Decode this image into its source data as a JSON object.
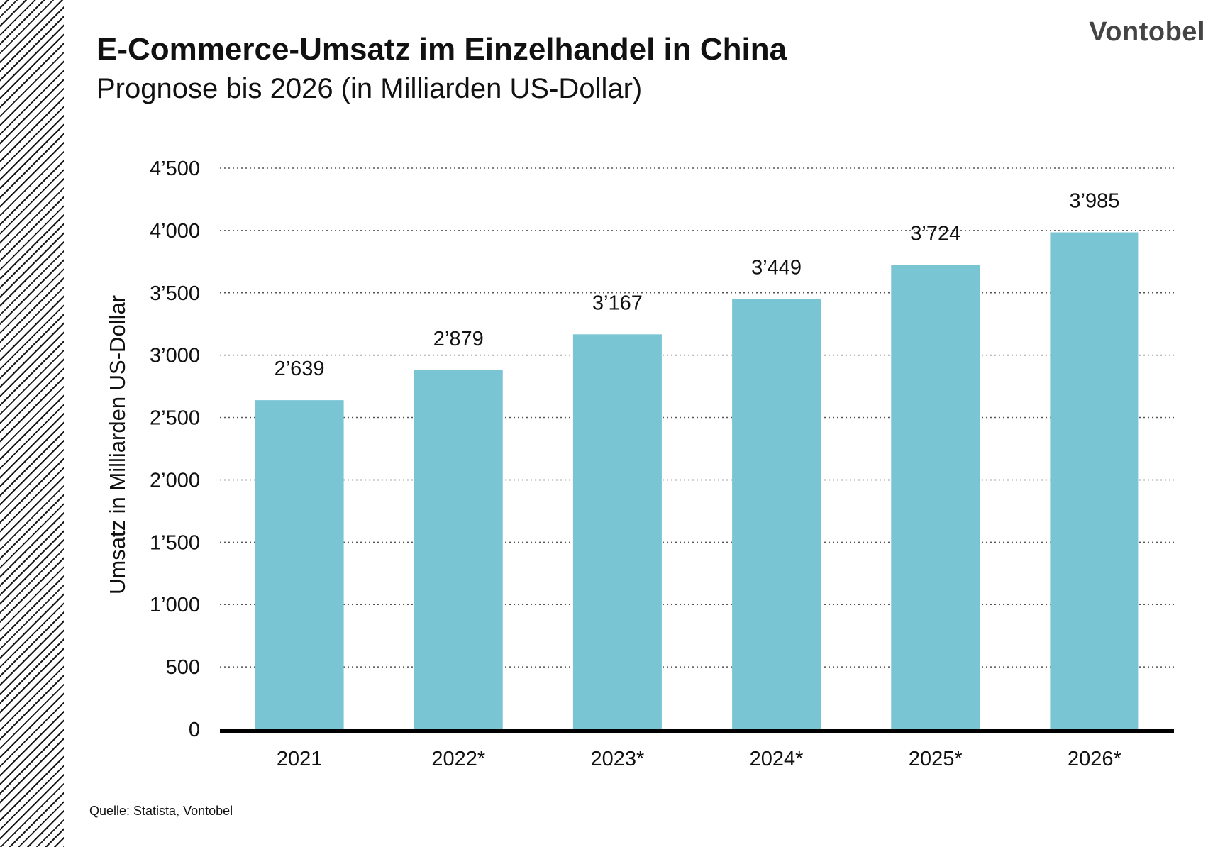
{
  "header": {
    "title": "E-Commerce-Umsatz im Einzelhandel in China",
    "subtitle": "Prognose bis 2026 (in Milliarden US-Dollar)",
    "logo": "Vontobel"
  },
  "footer": {
    "source": "Quelle: Statista, Vontobel"
  },
  "chart_data": {
    "type": "bar",
    "title": "E-Commerce-Umsatz im Einzelhandel in China",
    "subtitle": "Prognose bis 2026 (in Milliarden US-Dollar)",
    "xlabel": "",
    "ylabel": "Umsatz in Milliarden US-Dollar",
    "categories": [
      "2021",
      "2022*",
      "2023*",
      "2024*",
      "2025*",
      "2026*"
    ],
    "values": [
      2639,
      2879,
      3167,
      3449,
      3724,
      3985
    ],
    "value_labels": [
      "2’639",
      "2’879",
      "3’167",
      "3’449",
      "3’724",
      "3’985"
    ],
    "ylim": [
      0,
      4500
    ],
    "yticks": [
      0,
      500,
      1000,
      1500,
      2000,
      2500,
      3000,
      3500,
      4000,
      4500
    ],
    "ytick_labels": [
      "0",
      "500",
      "1’000",
      "1’500",
      "2’000",
      "2’500",
      "3’000",
      "3’500",
      "4’000",
      "4’500"
    ],
    "grid": "horizontal dotted",
    "legend": "none",
    "bar_color": "#7ac5d4",
    "axis_color": "#000000"
  }
}
